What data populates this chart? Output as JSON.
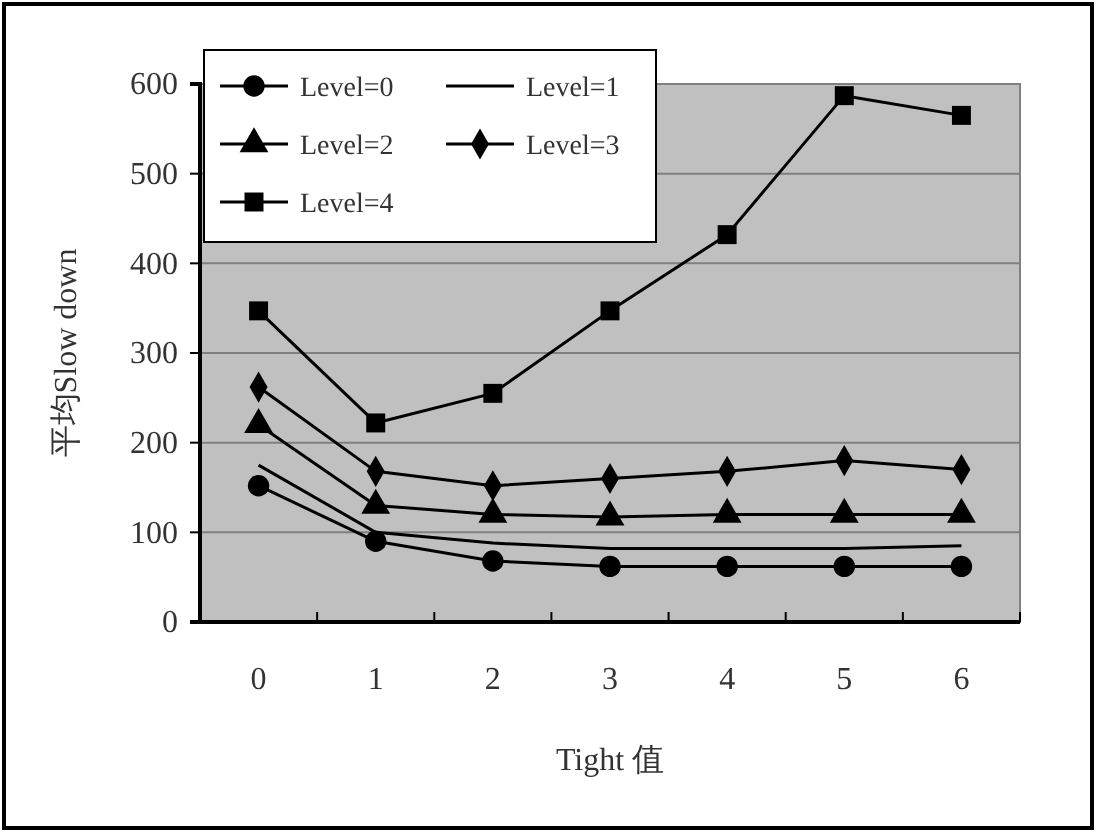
{
  "chart_data": {
    "type": "line",
    "xlabel": "Tight 值",
    "ylabel": "平均Slow down",
    "categories": [
      "0",
      "1",
      "2",
      "3",
      "4",
      "5",
      "6"
    ],
    "ylim": [
      0,
      600
    ],
    "yticks": [
      0,
      100,
      200,
      300,
      400,
      500,
      600
    ],
    "grid": "y",
    "legend": "top left",
    "series": [
      {
        "name": "Level=0",
        "color": "#000000",
        "marker": "circle",
        "values": [
          152,
          90,
          68,
          62,
          62,
          62,
          62
        ]
      },
      {
        "name": "Level=1",
        "color": "#000000",
        "marker": "none",
        "values": [
          175,
          100,
          88,
          82,
          82,
          82,
          85
        ]
      },
      {
        "name": "Level=2",
        "color": "#000000",
        "marker": "triangle",
        "values": [
          220,
          130,
          120,
          117,
          120,
          120,
          120
        ]
      },
      {
        "name": "Level=3",
        "color": "#000000",
        "marker": "diamond",
        "values": [
          262,
          168,
          152,
          160,
          168,
          180,
          170
        ]
      },
      {
        "name": "Level=4",
        "color": "#000000",
        "marker": "square",
        "values": [
          347,
          222,
          255,
          347,
          432,
          587,
          565
        ]
      }
    ]
  }
}
